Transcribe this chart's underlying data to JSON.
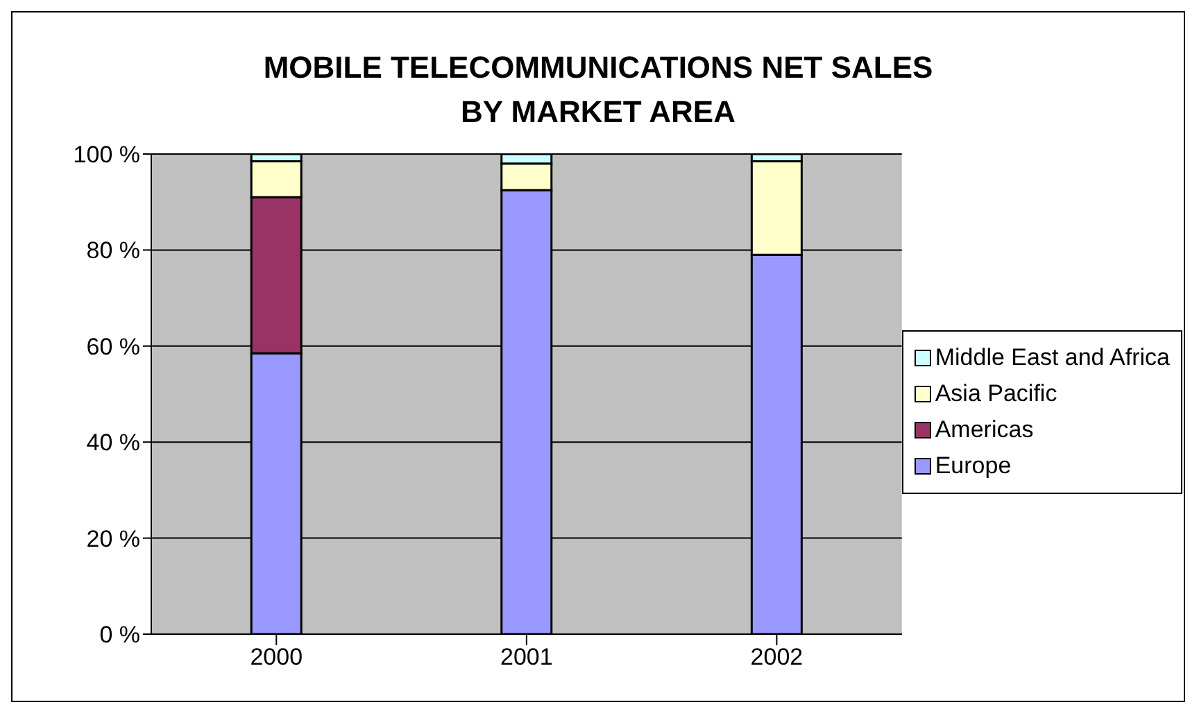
{
  "chart_data": {
    "type": "bar",
    "title": "MOBILE TELECOMMUNICATIONS NET SALES\nBY MARKET AREA",
    "categories": [
      "2000",
      "2001",
      "2002"
    ],
    "series": [
      {
        "name": "Europe",
        "color": "#9999ff",
        "values": [
          58.5,
          92.5,
          79
        ]
      },
      {
        "name": "Americas",
        "color": "#993366",
        "values": [
          32.5,
          0,
          0
        ]
      },
      {
        "name": "Asia Pacific",
        "color": "#ffffcc",
        "values": [
          7.5,
          5.5,
          19.5
        ]
      },
      {
        "name": "Middle East and Africa",
        "color": "#ccffff",
        "values": [
          1.5,
          2,
          1.5
        ]
      }
    ],
    "stacked": true,
    "ylim": [
      0,
      100
    ],
    "yticks": [
      {
        "value": 0,
        "label": "0 %"
      },
      {
        "value": 20,
        "label": "20 %"
      },
      {
        "value": 40,
        "label": "40 %"
      },
      {
        "value": 60,
        "label": "60 %"
      },
      {
        "value": 80,
        "label": "80 %"
      },
      {
        "value": 100,
        "label": "100 %"
      }
    ],
    "grid": "y",
    "legend": "right"
  }
}
